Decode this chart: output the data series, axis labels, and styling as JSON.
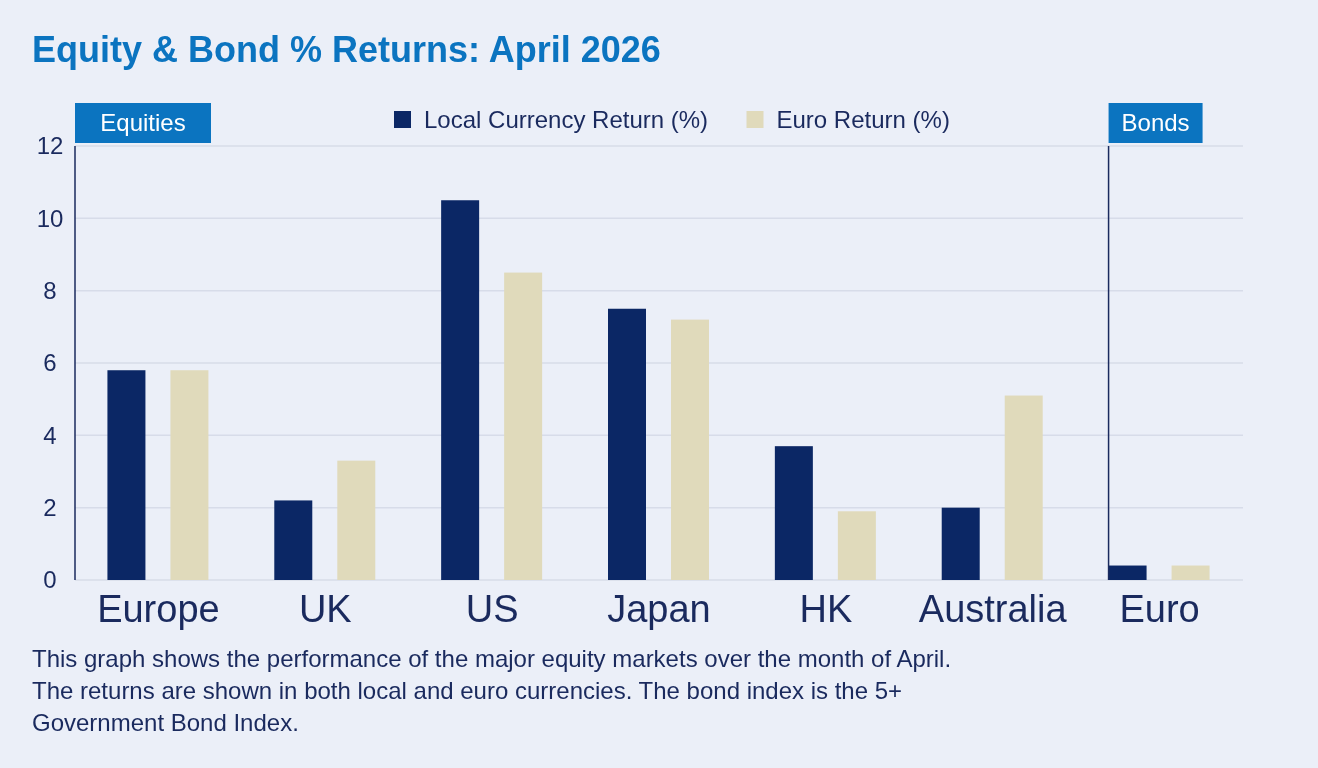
{
  "chart_data": {
    "type": "bar",
    "title": "Equity & Bond % Returns: April 2026",
    "categories": [
      "Europe",
      "UK",
      "US",
      "Japan",
      "HK",
      "Australia",
      "Euro"
    ],
    "series": [
      {
        "name": "Local Currency Return (%)",
        "color": "#0b2765",
        "values": [
          5.8,
          2.2,
          10.5,
          7.5,
          3.7,
          2.0,
          0.4
        ]
      },
      {
        "name": "Euro Return (%)",
        "color": "#e0dabb",
        "values": [
          5.8,
          3.3,
          8.5,
          7.2,
          1.9,
          5.1,
          0.4
        ]
      }
    ],
    "ylim": [
      0,
      12
    ],
    "yticks": [
      0,
      2,
      4,
      6,
      8,
      10,
      12
    ],
    "grid": "y",
    "ref_lines": [
      {
        "axis": "x",
        "value": "Euro",
        "label": "Bonds",
        "color": "#1a2a5e"
      }
    ],
    "legend": "top",
    "annotations": [
      "Equities",
      "This graph shows the performance of the major equity markets over the month of April. The returns are shown in both local and euro currencies. The bond index is the 5+ Government Bond Index."
    ]
  }
}
